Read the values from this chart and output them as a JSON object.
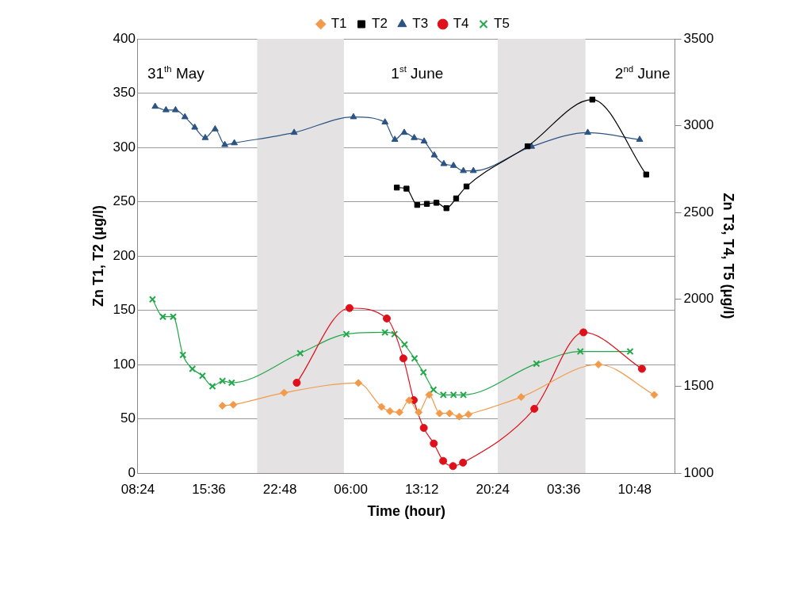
{
  "chart_data": {
    "type": "line",
    "xlabel": "Time (hour)",
    "ylabel": "Zn T1, T2 (μg/l)",
    "y2label": "Zn T3, T4, T5 (μg/l)",
    "annotations": [
      "31$^{th}$ May",
      "1$^{st}$ June",
      "2$^{nd}$ June"
    ],
    "xlim": [
      "--05-31T08:24",
      "--06-02T14:53"
    ],
    "xticks": [
      {
        "value": "--05-31T08:24",
        "label": "08:24"
      },
      {
        "value": "--05-31T15:36",
        "label": "15:36"
      },
      {
        "value": "--05-31T22:48",
        "label": "22:48"
      },
      {
        "value": "--06-01T06:00",
        "label": "06:00"
      },
      {
        "value": "--06-01T13:12",
        "label": "13:12"
      },
      {
        "value": "--06-01T20:24",
        "label": "20:24"
      },
      {
        "value": "--06-02T03:36",
        "label": "03:36"
      },
      {
        "value": "--06-02T10:48",
        "label": "10:48"
      }
    ],
    "ylim": [
      0,
      400
    ],
    "yticks": [
      0,
      50,
      100,
      150,
      200,
      250,
      300,
      350,
      400
    ],
    "y2lim": [
      1000,
      3500
    ],
    "y2ticks": [
      1000,
      1500,
      2000,
      2500,
      3000,
      3500
    ],
    "grid": "y",
    "legend": "top",
    "bands": [
      {
        "axis": "x",
        "from": "--05-31T20:30",
        "to": "--06-01T05:18",
        "color": "#e4e2e2"
      },
      {
        "axis": "x",
        "from": "--06-01T20:54",
        "to": "--06-02T05:48",
        "color": "#e4e2e2"
      }
    ],
    "series": [
      {
        "name": "T1",
        "color": "#f39a4a",
        "marker": "diamond",
        "x": [
          "--05-31T16:59",
          "--05-31T18:05",
          "--05-31T23:14",
          "--06-01T06:46",
          "--06-01T09:07",
          "--06-01T09:58",
          "--06-01T10:56",
          "--06-01T11:55",
          "--06-01T12:53",
          "--06-01T13:57",
          "--06-01T15:00",
          "--06-01T16:01",
          "--06-01T17:00",
          "--06-01T17:56",
          "--06-01T23:17",
          "--06-02T07:07",
          "--06-02T12:47"
        ],
        "values": [
          62,
          63,
          74,
          83,
          61,
          57,
          56,
          67,
          56,
          72,
          55,
          55,
          52,
          54,
          70,
          100,
          72
        ]
      },
      {
        "name": "T2",
        "color": "#000000",
        "marker": "square",
        "x": [
          "--06-01T10:40",
          "--06-01T11:39",
          "--06-01T12:44",
          "--06-01T13:43",
          "--06-01T14:41",
          "--06-01T15:42",
          "--06-01T16:41",
          "--06-01T17:44",
          "--06-01T23:56",
          "--06-02T06:30",
          "--06-02T11:58"
        ],
        "values": [
          263,
          262,
          247,
          248,
          249,
          244,
          253,
          264,
          301,
          344,
          275
        ]
      },
      {
        "name": "T3",
        "color": "#2b5384",
        "marker": "triangle",
        "axis": "y2",
        "x": [
          "--05-31T10:09",
          "--05-31T11:15",
          "--05-31T12:13",
          "--05-31T13:10",
          "--05-31T14:10",
          "--05-31T15:14",
          "--05-31T16:14",
          "--05-31T17:13",
          "--05-31T18:11",
          "--06-01T00:15",
          "--06-01T06:16",
          "--06-01T09:28",
          "--06-01T10:28",
          "--06-01T11:25",
          "--06-01T12:26",
          "--06-01T13:26",
          "--06-01T14:28",
          "--06-01T15:26",
          "--06-01T16:25",
          "--06-01T17:25",
          "--06-01T18:26",
          "--06-02T00:20",
          "--06-02T06:02",
          "--06-02T11:18"
        ],
        "values": [
          3110,
          3090,
          3090,
          3050,
          2990,
          2930,
          2980,
          2890,
          2900,
          2960,
          3050,
          3020,
          2920,
          2960,
          2930,
          2910,
          2830,
          2780,
          2770,
          2740,
          2740,
          2880,
          2960,
          2920
        ]
      },
      {
        "name": "T4",
        "color": "#e0101a",
        "marker": "circle",
        "axis": "y2",
        "x": [
          "--06-01T00:31",
          "--06-01T05:52",
          "--06-01T09:39",
          "--06-01T11:20",
          "--06-01T12:23",
          "--06-01T13:24",
          "--06-01T14:25",
          "--06-01T15:22",
          "--06-01T16:22",
          "--06-01T17:23",
          "--06-02T00:37",
          "--06-02T05:36",
          "--06-02T11:32"
        ],
        "values": [
          1520,
          1950,
          1890,
          1660,
          1420,
          1260,
          1170,
          1070,
          1040,
          1060,
          1370,
          1810,
          1600
        ]
      },
      {
        "name": "T5",
        "color": "#22a84a",
        "marker": "cross",
        "axis": "y2",
        "x": [
          "--05-31T09:53",
          "--05-31T10:56",
          "--05-31T11:59",
          "--05-31T12:58",
          "--05-31T13:56",
          "--05-31T14:57",
          "--05-31T15:58",
          "--05-31T16:59",
          "--05-31T17:55",
          "--06-01T00:52",
          "--06-01T05:33",
          "--06-01T09:28",
          "--06-01T10:26",
          "--06-01T11:27",
          "--06-01T12:28",
          "--06-01T13:22",
          "--06-01T14:23",
          "--06-01T15:23",
          "--06-01T16:25",
          "--06-01T17:25",
          "--06-02T00:50",
          "--06-02T05:17",
          "--06-02T10:20"
        ],
        "values": [
          2000,
          1900,
          1900,
          1680,
          1600,
          1560,
          1500,
          1530,
          1520,
          1690,
          1800,
          1810,
          1800,
          1740,
          1660,
          1580,
          1480,
          1450,
          1450,
          1450,
          1630,
          1700,
          1700
        ]
      }
    ]
  }
}
